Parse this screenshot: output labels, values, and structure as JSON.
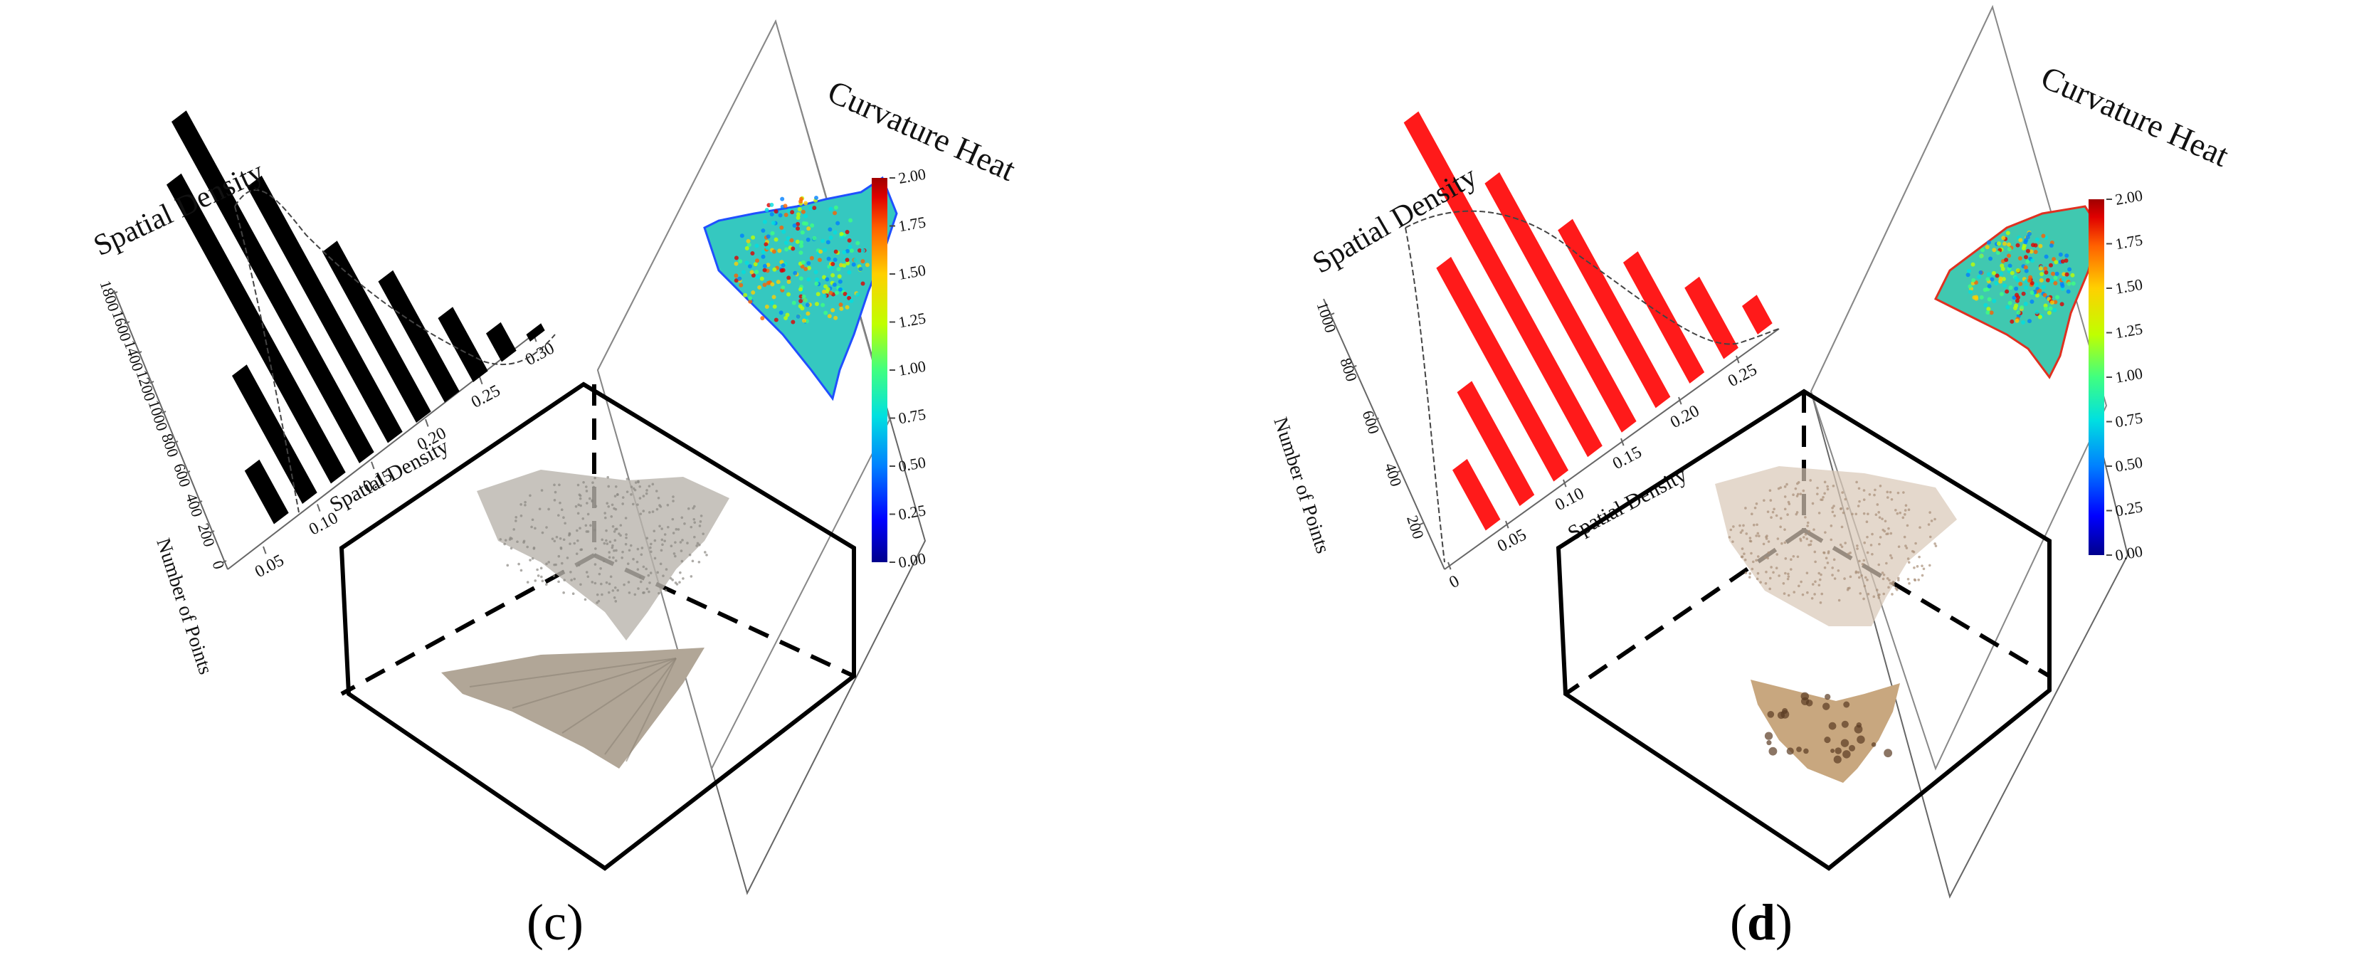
{
  "panels": [
    {
      "label_open": "(",
      "label_letter": "c",
      "label_close": ")",
      "bar_color": "#000000",
      "histogram": {
        "title": "Spatial Density",
        "xlabel": "Spatial Density",
        "ylabel": "Number of Points",
        "x_ticks": [
          "0.05",
          "0.10",
          "0.15",
          "0.20",
          "0.25",
          "0.30"
        ],
        "y_ticks": [
          "0",
          "200",
          "400",
          "600",
          "800",
          "1000",
          "1200",
          "1400",
          "1600",
          "1800"
        ]
      },
      "heatmap": {
        "title": "Curvature Heat",
        "colorbar_ticks": [
          "0.00",
          "0.25",
          "0.50",
          "0.75",
          "1.00",
          "1.25",
          "1.50",
          "1.75",
          "2.00"
        ]
      },
      "wing_colors": {
        "pointcloud": "#b9b4ad",
        "wing": "#b1a697",
        "vein": "#8e8476"
      }
    },
    {
      "label_open": "(",
      "label_letter": "d",
      "label_close": ")",
      "bar_color": "#ff1a1a",
      "histogram": {
        "title": "Spatial Density",
        "xlabel": "Spatial Density",
        "ylabel": "Number of Points",
        "x_ticks": [
          "0",
          "0.05",
          "0.10",
          "0.15",
          "0.20",
          "0.25"
        ],
        "y_ticks": [
          "200",
          "400",
          "600",
          "800",
          "1000"
        ]
      },
      "heatmap": {
        "title": "Curvature Heat",
        "colorbar_ticks": [
          "0.00",
          "0.25",
          "0.50",
          "0.75",
          "1.00",
          "1.25",
          "1.50",
          "1.75",
          "2.00"
        ]
      },
      "wing_colors": {
        "pointcloud": "#c9b39c",
        "wing": "#c8a77f",
        "vein": "#5a3a22"
      }
    }
  ],
  "colorbar_gradient": [
    "#00008c",
    "#0000ff",
    "#0080ff",
    "#00e0e0",
    "#40ff80",
    "#c0ff00",
    "#ffd000",
    "#ff6000",
    "#e00000",
    "#a00000"
  ]
}
